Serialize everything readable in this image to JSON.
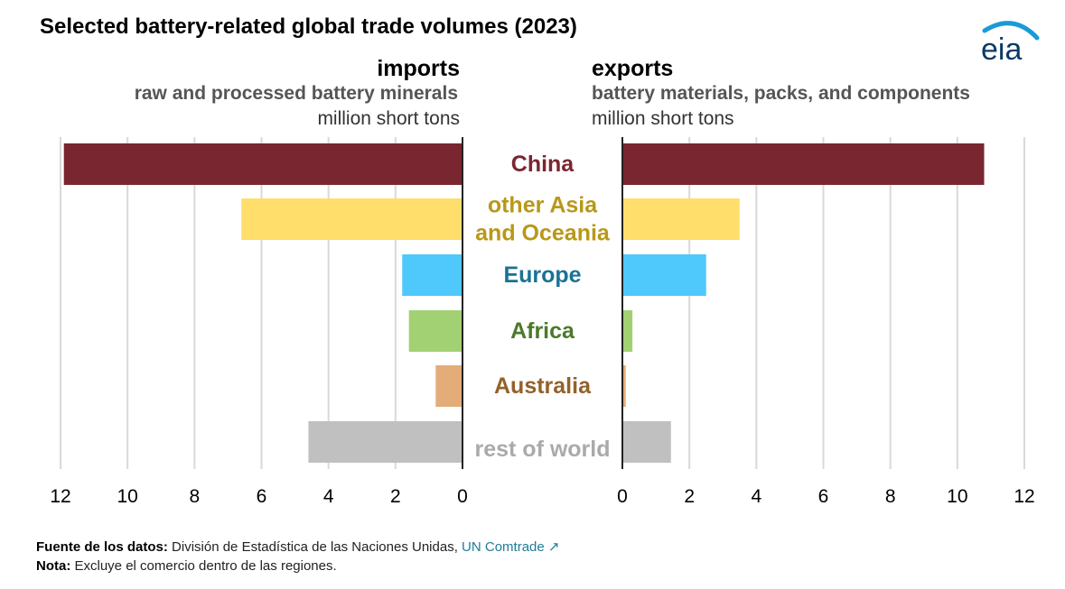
{
  "title": "Selected battery-related global trade volumes (2023)",
  "logo_text": "eia",
  "imports": {
    "title": "imports",
    "subtitle": "raw and processed battery minerals",
    "unit": "million short tons"
  },
  "exports": {
    "title": "exports",
    "subtitle": "battery materials, packs, and components",
    "unit": "million short tons"
  },
  "chart_data": {
    "type": "bar",
    "orientation": "horizontal-butterfly",
    "categories": [
      "China",
      "other Asia and Oceania",
      "Europe",
      "Africa",
      "Australia",
      "rest of world"
    ],
    "category_label_lines": [
      [
        "China"
      ],
      [
        "other Asia",
        "and Oceania"
      ],
      [
        "Europe"
      ],
      [
        "Africa"
      ],
      [
        "Australia"
      ],
      [
        "rest of world"
      ]
    ],
    "category_colors": [
      "#7a2630",
      "#b8981a",
      "#1a7294",
      "#4a7a2a",
      "#93612a",
      "#aaaaaa"
    ],
    "bar_colors": [
      "#7a2630",
      "#ffde6b",
      "#4fc8fb",
      "#a1d173",
      "#e3ac78",
      "#c0c0c0"
    ],
    "series": [
      {
        "name": "imports",
        "values": [
          11.9,
          6.6,
          1.8,
          1.6,
          0.8,
          4.6
        ]
      },
      {
        "name": "exports",
        "values": [
          10.8,
          3.5,
          2.5,
          0.3,
          0.1,
          1.45
        ]
      }
    ],
    "xlim": [
      0,
      12
    ],
    "ticks": [
      12,
      10,
      8,
      6,
      4,
      2,
      0
    ],
    "export_ticks": [
      0,
      2,
      4,
      6,
      8,
      10,
      12
    ],
    "grid": true
  },
  "footer": {
    "source_label": "Fuente de los datos:",
    "source_text": "División de Estadística de las Naciones Unidas,",
    "source_link": "UN Comtrade",
    "note_label": "Nota:",
    "note_text": "Excluye el comercio dentro de las regiones."
  }
}
